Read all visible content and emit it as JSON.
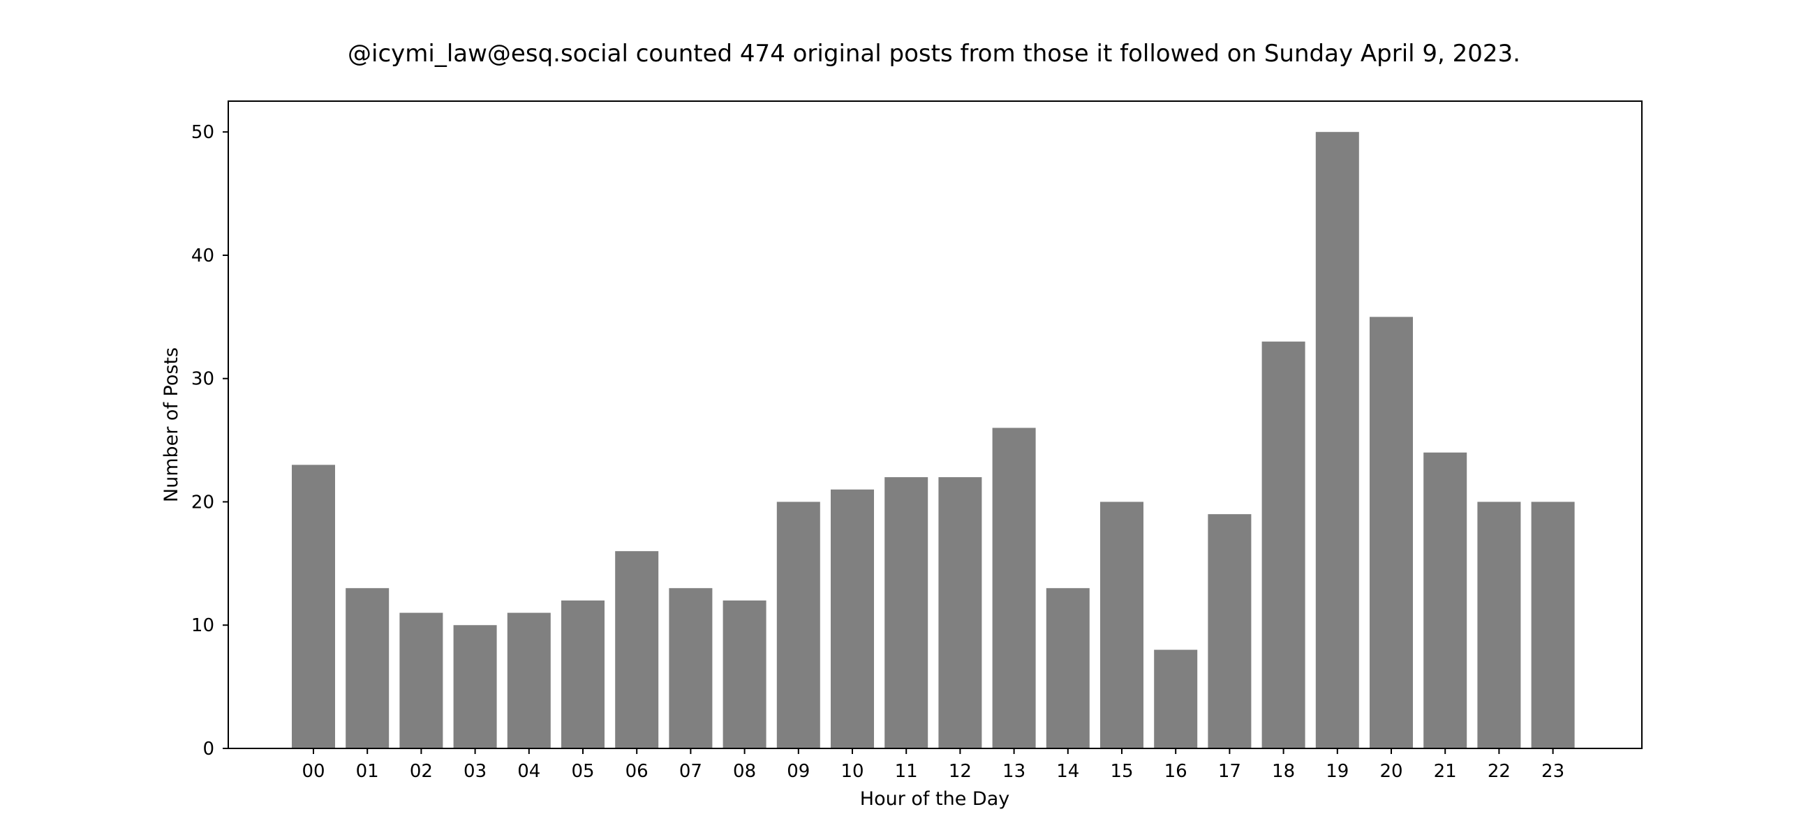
{
  "chart_data": {
    "type": "bar",
    "title": "@icymi_law@esq.social counted 474 original posts from those it followed on Sunday April 9, 2023.",
    "xlabel": "Hour of the Day",
    "ylabel": "Number of Posts",
    "categories": [
      "00",
      "01",
      "02",
      "03",
      "04",
      "05",
      "06",
      "07",
      "08",
      "09",
      "10",
      "11",
      "12",
      "13",
      "14",
      "15",
      "16",
      "17",
      "18",
      "19",
      "20",
      "21",
      "22",
      "23"
    ],
    "values": [
      23,
      13,
      11,
      10,
      11,
      12,
      16,
      13,
      12,
      20,
      21,
      22,
      22,
      26,
      13,
      20,
      8,
      19,
      33,
      50,
      35,
      24,
      20,
      20
    ],
    "ylim": [
      0,
      52.5
    ],
    "yticks": [
      0,
      10,
      20,
      30,
      40,
      50
    ],
    "bar_color": "#808080",
    "grid": false,
    "legend": "none"
  }
}
